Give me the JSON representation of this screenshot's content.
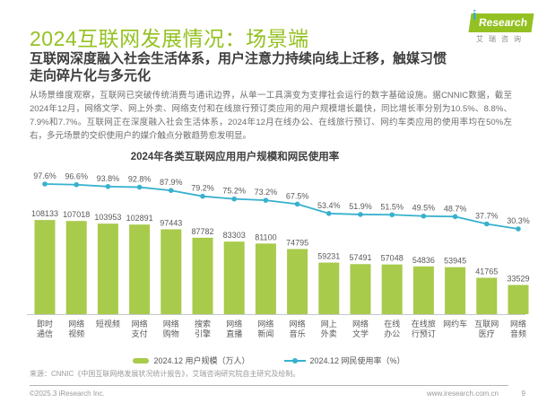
{
  "header": {
    "title": "2024互联网发展情况：场景端",
    "logo": {
      "brand_i": "i",
      "brand_name": "Research",
      "brand_cn": "艾瑞咨询"
    },
    "subtitle": "互联网深度融入社会生活体系，用户注意力持续向线上迁移，触媒习惯走向碎片化与多元化"
  },
  "body_text": "从场景维度观察，互联网已突破传统消费与通讯边界，从单一工具演变为支撑社会运行的数字基础设施。据CNNIC数据，截至2024年12月，网络文学、网上外卖、网络支付和在线旅行预订类应用的用户规模增长最快，同比增长率分别为10.5%、8.8%、7.9%和7.7%。互联网正在深度融入社会生活体系，2024年12月在线办公、在线旅行预订、网约车类应用的使用率均在50%左右，多元场景的交织使用户的媒介触点分散趋势愈发明显。",
  "chart_data": {
    "type": "bar",
    "title": "2024年各类互联网应用用户规模和网民使用率",
    "categories": [
      "即时通信",
      "网络视频",
      "短视频",
      "网络支付",
      "网络购物",
      "搜索引擎",
      "网络直播",
      "网络新闻",
      "网络音乐",
      "网上外卖",
      "网络文学",
      "在线办公",
      "在线旅行预订",
      "网约车",
      "互联网医疗",
      "网络音频"
    ],
    "series": [
      {
        "name": "2024.12 用户规模（万人）",
        "type": "bar",
        "color": "#a8cb4c",
        "values": [
          108133,
          107018,
          103953,
          102891,
          97443,
          87782,
          83303,
          81100,
          74795,
          59231,
          57491,
          57048,
          54836,
          53945,
          41765,
          33529
        ]
      },
      {
        "name": "2024.12 网民使用率（%）",
        "type": "line",
        "color": "#37b1ce",
        "values": [
          97.6,
          96.6,
          93.8,
          92.8,
          87.9,
          79.2,
          75.2,
          73.2,
          67.5,
          53.4,
          51.9,
          51.5,
          49.5,
          48.7,
          37.7,
          30.3
        ]
      }
    ],
    "ylabel": "用户规模（万人）",
    "y2label": "网民使用率（%）",
    "grid": false,
    "legend_position": "bottom"
  },
  "source_note": "来源：CNNIC《中国互联网络发展状况统计报告》，艾瑞咨询研究院自主研究及绘制。",
  "footer": {
    "copyright": "©2025.3 iResearch Inc.",
    "website": "www.iresearch.com.cn",
    "page_number": "9"
  },
  "colors": {
    "brand_green": "#94c122",
    "bar_green": "#a8cb4c",
    "line_cyan": "#37b1ce",
    "label_gray": "#595959"
  }
}
